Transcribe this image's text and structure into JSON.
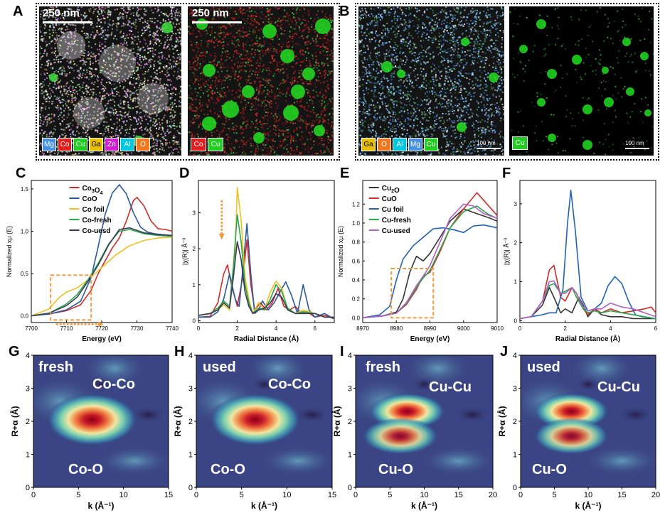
{
  "panels": {
    "A": {
      "label": "A",
      "scale_left": "250 nm",
      "scale_right": "250 nm",
      "legend_left": [
        "Mg",
        "Co",
        "Cu",
        "Ga",
        "Zn",
        "Al",
        "O"
      ],
      "legend_right": [
        "Co",
        "Cu"
      ]
    },
    "B": {
      "label": "B",
      "scale_left": "100 nm",
      "scale_right": "100 nm",
      "legend_left": [
        "Ga",
        "O",
        "Al",
        "Mg",
        "Cu"
      ],
      "legend_right": [
        "Cu"
      ]
    },
    "C": {
      "label": "C"
    },
    "D": {
      "label": "D"
    },
    "E": {
      "label": "E"
    },
    "F": {
      "label": "F"
    },
    "G": {
      "label": "G",
      "tag": "fresh",
      "shell1": "Co-Co",
      "shell2": "Co-O"
    },
    "H": {
      "label": "H",
      "tag": "used",
      "shell1": "Co-Co",
      "shell2": "Co-O"
    },
    "I": {
      "label": "I",
      "tag": "fresh",
      "shell1": "Cu-Cu",
      "shell2": "Cu-O"
    },
    "J": {
      "label": "J",
      "tag": "used",
      "shell1": "Cu-Cu",
      "shell2": "Cu-O"
    }
  },
  "colors": {
    "Mg": "#4a90e2",
    "Co": "#e02020",
    "Cu": "#22cc22",
    "Ga": "#e8c000",
    "Zn": "#d020d0",
    "Al": "#00c8e0",
    "O": "#f07820"
  },
  "chart_data": [
    {
      "id": "C",
      "type": "line",
      "xlabel": "Energy (eV)",
      "ylabel": "Normalized xμ (E)",
      "xlim": [
        7700,
        7740
      ],
      "ylim": [
        -0.08,
        1.6
      ],
      "xticks": [
        "7700",
        "7710",
        "7720",
        "7730",
        "7740"
      ],
      "yticks": [
        "0.0",
        "0.5",
        "1.0",
        "1.5"
      ],
      "series": [
        {
          "name": "Co3O4",
          "color": "#d42a2a",
          "x": [
            7700,
            7705,
            7710,
            7714,
            7717,
            7719,
            7721,
            7723,
            7725,
            7727,
            7729,
            7730,
            7732,
            7734,
            7736,
            7738,
            7740
          ],
          "y": [
            0,
            0.02,
            0.06,
            0.13,
            0.3,
            0.5,
            0.65,
            0.8,
            0.92,
            1.12,
            1.36,
            1.4,
            1.3,
            1.12,
            1.03,
            1.02,
            1.0
          ]
        },
        {
          "name": "CoO",
          "color": "#2a5a9a",
          "x": [
            7700,
            7705,
            7710,
            7714,
            7717,
            7719,
            7721,
            7723,
            7725,
            7727,
            7729,
            7731,
            7733,
            7735,
            7737,
            7740
          ],
          "y": [
            0,
            0.02,
            0.07,
            0.17,
            0.45,
            0.82,
            1.2,
            1.45,
            1.55,
            1.44,
            1.22,
            1.05,
            0.99,
            0.97,
            0.96,
            0.95
          ]
        },
        {
          "name": "Co foil",
          "color": "#f0c020",
          "x": [
            7700,
            7705,
            7708,
            7710,
            7713,
            7716,
            7720,
            7724,
            7728,
            7732,
            7736,
            7740
          ],
          "y": [
            0,
            0.08,
            0.22,
            0.28,
            0.33,
            0.42,
            0.57,
            0.72,
            0.83,
            0.89,
            0.92,
            0.93
          ]
        },
        {
          "name": "Co-fresh",
          "color": "#2aa84a",
          "x": [
            7700,
            7705,
            7710,
            7713,
            7716,
            7719,
            7722,
            7725,
            7728,
            7732,
            7736,
            7740
          ],
          "y": [
            0,
            0.03,
            0.14,
            0.25,
            0.42,
            0.62,
            0.85,
            1.0,
            1.02,
            0.97,
            0.95,
            0.94
          ]
        },
        {
          "name": "Co-uesd",
          "color": "#3a3a5a",
          "x": [
            7700,
            7705,
            7710,
            7713,
            7716,
            7719,
            7722,
            7725,
            7728,
            7732,
            7736,
            7740
          ],
          "y": [
            0,
            0.03,
            0.12,
            0.22,
            0.4,
            0.6,
            0.84,
            1.02,
            1.04,
            0.98,
            0.96,
            0.95
          ]
        }
      ]
    },
    {
      "id": "D",
      "type": "line",
      "xlabel": "Radial Distance (Å)",
      "ylabel": "|χ(R)| Å⁻³",
      "xlim": [
        0,
        7
      ],
      "ylim": [
        -0.05,
        3.9
      ],
      "xticks": [
        "0",
        "2",
        "4",
        "6"
      ],
      "yticks": [
        "0",
        "1",
        "2",
        "3"
      ],
      "series": [
        {
          "name": "Co3O4",
          "color": "#d42a2a",
          "x": [
            0,
            0.6,
            1.0,
            1.3,
            1.5,
            1.7,
            2.0,
            2.3,
            2.5,
            2.7,
            2.9,
            3.2,
            3.5,
            3.8,
            4.1,
            4.4,
            4.7,
            5.0,
            5.3,
            5.6,
            6.0,
            6.5,
            7.0
          ],
          "y": [
            0.1,
            0.12,
            0.5,
            1.3,
            1.55,
            1.0,
            0.4,
            1.25,
            2.25,
            1.0,
            0.3,
            0.5,
            0.3,
            0.5,
            0.9,
            0.4,
            0.3,
            0.4,
            0.2,
            0.25,
            0.1,
            0.15,
            0.05
          ]
        },
        {
          "name": "CoO",
          "color": "#2a5a9a",
          "x": [
            0,
            0.6,
            1.0,
            1.3,
            1.6,
            1.9,
            2.1,
            2.3,
            2.5,
            2.7,
            2.9,
            3.1,
            3.3,
            3.6,
            3.9,
            4.2,
            4.5,
            4.8,
            5.1,
            5.4,
            5.7,
            6.0,
            6.5,
            7.0
          ],
          "y": [
            0.1,
            0.1,
            0.25,
            0.6,
            1.3,
            0.6,
            0.4,
            1.5,
            2.7,
            1.3,
            0.2,
            0.3,
            0.55,
            0.3,
            0.5,
            0.8,
            1.08,
            0.7,
            0.2,
            1.0,
            0.3,
            0.1,
            0.2,
            0.05
          ]
        },
        {
          "name": "Co foil",
          "color": "#f0c020",
          "x": [
            0,
            0.6,
            1.0,
            1.3,
            1.6,
            1.9,
            2.0,
            2.2,
            2.4,
            2.6,
            2.8,
            3.1,
            3.4,
            3.7,
            4.0,
            4.3,
            4.6,
            5.0,
            5.4,
            6.0,
            6.5,
            7.0
          ],
          "y": [
            0.15,
            0.2,
            0.3,
            0.45,
            0.3,
            2.0,
            3.7,
            2.8,
            1.2,
            0.6,
            0.2,
            0.5,
            0.3,
            0.8,
            1.1,
            0.9,
            0.3,
            0.2,
            0.3,
            0.2,
            0.1,
            0.1
          ]
        },
        {
          "name": "Co-fresh",
          "color": "#2aa84a",
          "x": [
            0,
            0.6,
            1.0,
            1.3,
            1.6,
            1.8,
            2.0,
            2.2,
            2.4,
            2.6,
            2.8,
            3.1,
            3.4,
            3.7,
            4.0,
            4.3,
            4.6,
            5.0,
            5.4,
            6.0,
            6.5,
            7.0
          ],
          "y": [
            0.15,
            0.2,
            0.35,
            0.55,
            0.4,
            1.5,
            2.95,
            2.2,
            1.0,
            0.5,
            0.2,
            0.35,
            0.3,
            0.6,
            1.0,
            0.8,
            0.35,
            0.2,
            0.25,
            0.2,
            0.1,
            0.1
          ]
        },
        {
          "name": "Co-uesd",
          "color": "#3a3a5a",
          "x": [
            0,
            0.6,
            1.0,
            1.3,
            1.6,
            1.8,
            2.0,
            2.2,
            2.4,
            2.6,
            2.8,
            3.1,
            3.4,
            3.7,
            4.0,
            4.3,
            4.6,
            5.0,
            5.4,
            6.0,
            6.5,
            7.0
          ],
          "y": [
            0.15,
            0.2,
            0.3,
            0.5,
            0.35,
            1.2,
            2.2,
            1.7,
            0.8,
            0.4,
            0.2,
            0.3,
            0.35,
            0.5,
            0.75,
            0.65,
            0.3,
            0.2,
            0.2,
            0.2,
            0.1,
            0.1
          ]
        }
      ]
    },
    {
      "id": "E",
      "type": "line",
      "xlabel": "Energy (eV)",
      "ylabel": "Normalized xμ (E)",
      "xlim": [
        8970,
        9010
      ],
      "ylim": [
        -0.05,
        1.45
      ],
      "xticks": [
        "8970",
        "8980",
        "8990",
        "9000",
        "9010"
      ],
      "yticks": [
        "0.0",
        "0.2",
        "0.4",
        "0.6",
        "0.8",
        "1.0",
        "1.2"
      ],
      "series": [
        {
          "name": "Cu2O",
          "color": "#333333",
          "x": [
            8970,
            8976,
            8980,
            8982,
            8984,
            8986,
            8988,
            8990,
            8993,
            8996,
            9000,
            9004,
            9008,
            9010
          ],
          "y": [
            0,
            0.02,
            0.06,
            0.2,
            0.48,
            0.65,
            0.6,
            0.68,
            0.85,
            1.02,
            1.15,
            1.1,
            1.05,
            1.02
          ]
        },
        {
          "name": "CuO",
          "color": "#d42a2a",
          "x": [
            8970,
            8976,
            8980,
            8983,
            8986,
            8988,
            8990,
            8993,
            8996,
            9000,
            9004,
            9007,
            9010
          ],
          "y": [
            0,
            0.02,
            0.05,
            0.14,
            0.3,
            0.44,
            0.48,
            0.7,
            0.95,
            1.15,
            1.32,
            1.2,
            1.08
          ]
        },
        {
          "name": "Cu foil",
          "color": "#1f62b8",
          "x": [
            8970,
            8975,
            8978,
            8980,
            8982,
            8985,
            8988,
            8991,
            8994,
            8997,
            9000,
            9003,
            9006,
            9010
          ],
          "y": [
            0,
            0.03,
            0.12,
            0.4,
            0.62,
            0.76,
            0.85,
            0.94,
            0.95,
            0.93,
            0.9,
            0.97,
            0.98,
            0.95
          ]
        },
        {
          "name": "Cu-fresh",
          "color": "#2aa84a",
          "x": [
            8970,
            8976,
            8980,
            8983,
            8986,
            8988,
            8990,
            8993,
            8996,
            9000,
            9004,
            9007,
            9010
          ],
          "y": [
            0,
            0.02,
            0.05,
            0.15,
            0.32,
            0.42,
            0.5,
            0.72,
            0.95,
            1.12,
            1.18,
            1.1,
            1.05
          ]
        },
        {
          "name": "Cu-used",
          "color": "#b060c8",
          "x": [
            8970,
            8976,
            8980,
            8983,
            8986,
            8988,
            8990,
            8993,
            8996,
            9000,
            9003,
            9006,
            9010
          ],
          "y": [
            0,
            0.02,
            0.05,
            0.16,
            0.34,
            0.44,
            0.55,
            0.8,
            1.05,
            1.2,
            1.18,
            1.1,
            1.05
          ]
        }
      ]
    },
    {
      "id": "F",
      "type": "line",
      "xlabel": "Radial Distance (Å)",
      "ylabel": "|χ(R)| Å⁻³",
      "xlim": [
        0,
        6
      ],
      "ylim": [
        -0.05,
        3.6
      ],
      "xticks": [
        "0",
        "2",
        "4",
        "6"
      ],
      "yticks": [
        "0",
        "1",
        "2",
        "3"
      ],
      "series": [
        {
          "name": "Cu2O",
          "color": "#333333",
          "x": [
            0,
            0.5,
            1.0,
            1.3,
            1.5,
            1.8,
            2.0,
            2.3,
            2.6,
            2.8,
            3.0,
            3.3,
            3.6,
            4.0,
            4.5,
            5.0,
            5.5,
            6.0
          ],
          "y": [
            0.05,
            0.1,
            0.4,
            0.85,
            0.6,
            0.2,
            0.3,
            0.2,
            0.6,
            0.4,
            0.1,
            0.3,
            0.15,
            0.1,
            0.1,
            0.05,
            0.05,
            0.05
          ]
        },
        {
          "name": "CuO",
          "color": "#d42a2a",
          "x": [
            0,
            0.5,
            1.0,
            1.3,
            1.5,
            1.8,
            2.0,
            2.3,
            2.5,
            2.8,
            3.0,
            3.3,
            3.6,
            4.0,
            4.5,
            5.0,
            5.5,
            5.8,
            6.0
          ],
          "y": [
            0.05,
            0.1,
            0.5,
            1.3,
            1.42,
            0.6,
            0.5,
            0.85,
            0.7,
            0.3,
            0.15,
            0.3,
            0.2,
            0.3,
            0.2,
            0.25,
            0.3,
            0.35,
            0.2
          ]
        },
        {
          "name": "Cu foil",
          "color": "#1f62b8",
          "x": [
            0,
            0.5,
            1.0,
            1.3,
            1.6,
            1.9,
            2.1,
            2.25,
            2.45,
            2.7,
            3.0,
            3.3,
            3.6,
            3.9,
            4.2,
            4.5,
            4.8,
            5.1,
            5.4,
            6.0
          ],
          "y": [
            0.05,
            0.1,
            0.15,
            0.2,
            0.2,
            0.8,
            2.5,
            3.35,
            2.3,
            0.6,
            0.25,
            0.3,
            0.45,
            0.9,
            1.13,
            0.95,
            0.5,
            0.15,
            0.1,
            0.05
          ]
        },
        {
          "name": "Cu-fresh",
          "color": "#2aa84a",
          "x": [
            0,
            0.5,
            1.0,
            1.3,
            1.5,
            1.8,
            2.0,
            2.3,
            2.5,
            2.8,
            3.0,
            3.3,
            3.6,
            4.0,
            4.5,
            5.0,
            5.5,
            6.0
          ],
          "y": [
            0.05,
            0.1,
            0.5,
            0.9,
            0.95,
            0.7,
            0.75,
            0.85,
            0.6,
            0.3,
            0.2,
            0.25,
            0.2,
            0.25,
            0.2,
            0.15,
            0.1,
            0.05
          ]
        },
        {
          "name": "Cu-used",
          "color": "#b060c8",
          "x": [
            0,
            0.5,
            1.0,
            1.3,
            1.5,
            1.8,
            2.0,
            2.3,
            2.5,
            2.8,
            3.0,
            3.3,
            3.6,
            4.0,
            4.5,
            5.0,
            5.5,
            6.0
          ],
          "y": [
            0.05,
            0.1,
            0.5,
            1.0,
            1.02,
            0.7,
            0.7,
            0.85,
            0.7,
            0.35,
            0.25,
            0.3,
            0.3,
            0.45,
            0.35,
            0.3,
            0.2,
            0.1
          ]
        }
      ]
    },
    {
      "id": "G",
      "type": "heatmap",
      "xlabel": "k (Å⁻¹)",
      "ylabel": "R+α (Å)",
      "xlim": [
        0,
        15
      ],
      "ylim": [
        0,
        4
      ],
      "xticks": [
        "0",
        "5",
        "10",
        "15"
      ],
      "yticks": [
        "0",
        "1",
        "2",
        "3",
        "4"
      ],
      "peaks": [
        {
          "k": 6.5,
          "R": 2.05,
          "intensity": 1.0
        }
      ]
    },
    {
      "id": "H",
      "type": "heatmap",
      "xlabel": "k (Å⁻¹)",
      "ylabel": "R+α (Å)",
      "xlim": [
        0,
        15
      ],
      "ylim": [
        0,
        4
      ],
      "xticks": [
        "0",
        "5",
        "10",
        "15"
      ],
      "yticks": [
        "0",
        "1",
        "2",
        "3",
        "4"
      ],
      "peaks": [
        {
          "k": 6.5,
          "R": 2.05,
          "intensity": 1.0
        }
      ]
    },
    {
      "id": "I",
      "type": "heatmap",
      "xlabel": "k (Å⁻¹)",
      "ylabel": "R+α (Å)",
      "xlim": [
        0,
        20
      ],
      "ylim": [
        0,
        4
      ],
      "xticks": [
        "0",
        "5",
        "10",
        "15",
        "20"
      ],
      "yticks": [
        "0",
        "1",
        "2",
        "3",
        "4"
      ],
      "peaks": [
        {
          "k": 7.5,
          "R": 2.3,
          "intensity": 1.0
        },
        {
          "k": 6.5,
          "R": 1.55,
          "intensity": 0.85
        }
      ]
    },
    {
      "id": "J",
      "type": "heatmap",
      "xlabel": "k (Å⁻¹)",
      "ylabel": "R+α (Å)",
      "xlim": [
        0,
        20
      ],
      "ylim": [
        0,
        4
      ],
      "xticks": [
        "0",
        "5",
        "10",
        "15",
        "20"
      ],
      "yticks": [
        "0",
        "1",
        "2",
        "3",
        "4"
      ],
      "peaks": [
        {
          "k": 7.5,
          "R": 2.3,
          "intensity": 1.0
        },
        {
          "k": 7.5,
          "R": 1.55,
          "intensity": 0.85
        }
      ]
    }
  ]
}
